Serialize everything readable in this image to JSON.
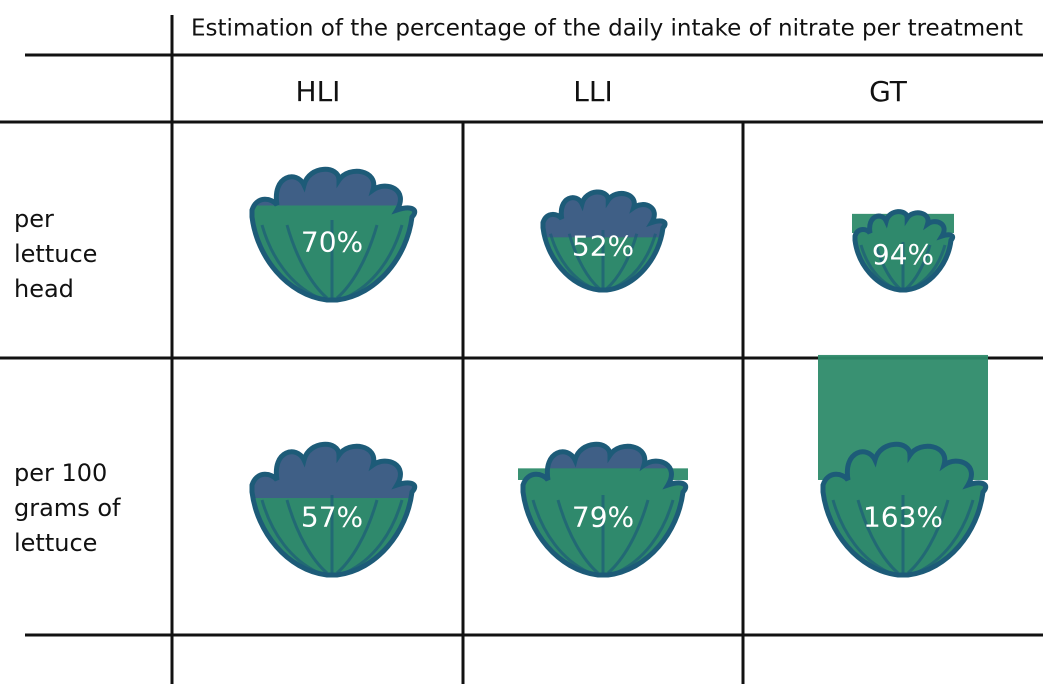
{
  "chart_data": {
    "type": "pictogram",
    "title": "Estimation of the percentage of the daily intake of nitrate per treatment",
    "categories": [
      "HLI",
      "LLI",
      "GT"
    ],
    "series": [
      {
        "name": "per lettuce head",
        "values": [
          70,
          52,
          94
        ],
        "value_labels": [
          "70%",
          "52%",
          "94%"
        ]
      },
      {
        "name": "per 100 grams of lettuce",
        "values": [
          57,
          79,
          163
        ],
        "value_labels": [
          "57%",
          "79%",
          "163%"
        ]
      }
    ],
    "fill_color": "#2e8b6a",
    "icon_color": "#3f5f86",
    "outline_color": "#1d5b78"
  }
}
